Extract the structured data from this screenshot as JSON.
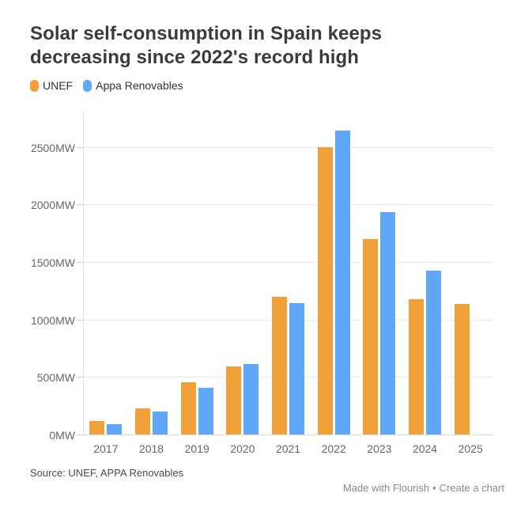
{
  "title_lines": [
    "Solar self-consumption in Spain keeps",
    "decreasing since 2022's record high"
  ],
  "legend": [
    {
      "label": "UNEF",
      "color": "#F1A13A"
    },
    {
      "label": "Appa Renovables",
      "color": "#61A7F9"
    }
  ],
  "footer": {
    "source": "Source: UNEF, APPA Renovables",
    "credit_made": "Made with Flourish",
    "credit_sep": "•",
    "credit_create": "Create a chart"
  },
  "chart_data": {
    "type": "bar",
    "title": "Solar self-consumption in Spain keeps decreasing since 2022's record high",
    "categories": [
      "2017",
      "2018",
      "2019",
      "2020",
      "2021",
      "2022",
      "2023",
      "2024",
      "2025"
    ],
    "series": [
      {
        "name": "UNEF",
        "color": "#F1A13A",
        "values": [
          123,
          236,
          459,
          596,
          1203,
          2507,
          1706,
          1182,
          1140
        ]
      },
      {
        "name": "Appa Renovables",
        "color": "#61A7F9",
        "values": [
          100,
          205,
          410,
          620,
          1151,
          2649,
          1943,
          1431,
          null
        ]
      }
    ],
    "ylabel": "MW",
    "ytick_labels": [
      "0MW",
      "500MW",
      "1000MW",
      "1500MW",
      "2000MW",
      "2500MW"
    ],
    "ytick_values": [
      0,
      500,
      1000,
      1500,
      2000,
      2500
    ],
    "ylim": [
      0,
      2830
    ],
    "grid": true,
    "legend_position": "top"
  }
}
